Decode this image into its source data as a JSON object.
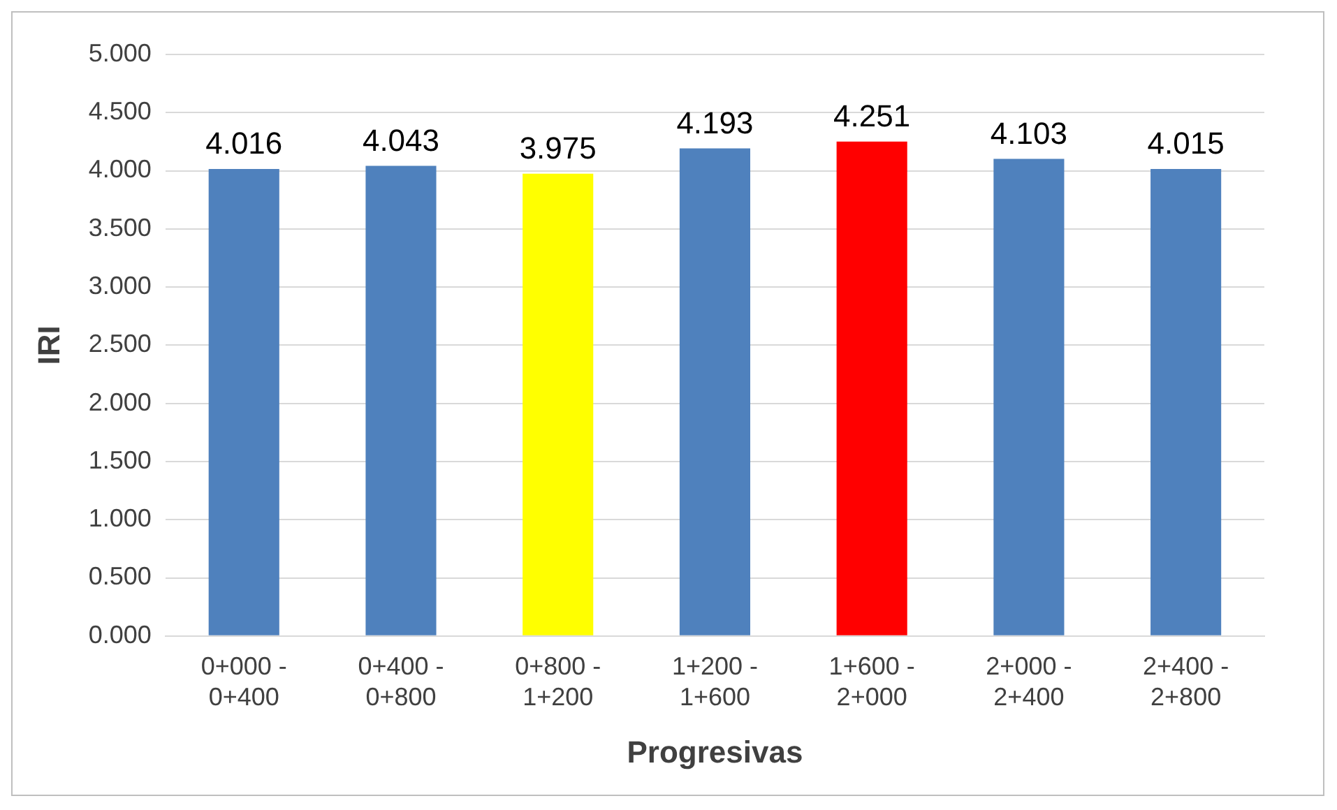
{
  "chart_data": {
    "type": "bar",
    "xlabel": "Progresivas",
    "ylabel": "IRI",
    "categories": [
      "0+000 - 0+400",
      "0+400 - 0+800",
      "0+800 - 1+200",
      "1+200 - 1+600",
      "1+600 - 2+000",
      "2+000 - 2+400",
      "2+400 - 2+800"
    ],
    "values": [
      4.016,
      4.043,
      3.975,
      4.193,
      4.251,
      4.103,
      4.015
    ],
    "colors": [
      "#4f81bd",
      "#4f81bd",
      "#ffff00",
      "#4f81bd",
      "#ff0000",
      "#4f81bd",
      "#4f81bd"
    ],
    "ylim": [
      0,
      5
    ],
    "yticks": [
      {
        "value": 0,
        "label": "0.000"
      },
      {
        "value": 0.5,
        "label": "0.500"
      },
      {
        "value": 1,
        "label": "1.000"
      },
      {
        "value": 1.5,
        "label": "1.500"
      },
      {
        "value": 2,
        "label": "2.000"
      },
      {
        "value": 2.5,
        "label": "2.500"
      },
      {
        "value": 3,
        "label": "3.000"
      },
      {
        "value": 3.5,
        "label": "3.500"
      },
      {
        "value": 4,
        "label": "4.000"
      },
      {
        "value": 4.5,
        "label": "4.500"
      },
      {
        "value": 5,
        "label": "5.000"
      }
    ],
    "grid": "y",
    "legend": false,
    "data_labels": true
  }
}
